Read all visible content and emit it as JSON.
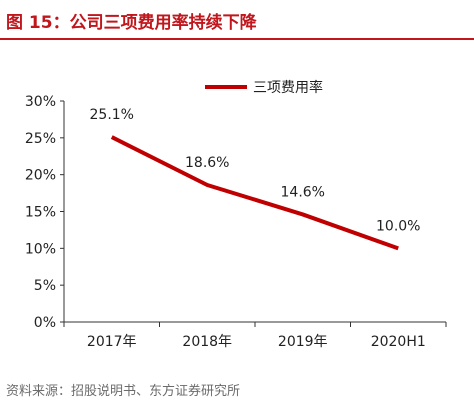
{
  "header": {
    "title": "图 15：公司三项费用率持续下降"
  },
  "footer": {
    "source": "资料来源：招股说明书、东方证券研究所"
  },
  "colors": {
    "accent": "#c0161c",
    "line": "#c00000"
  },
  "chart_data": {
    "type": "line",
    "title": "",
    "xlabel": "",
    "ylabel": "",
    "categories": [
      "2017年",
      "2018年",
      "2019年",
      "2020H1"
    ],
    "series": [
      {
        "name": "三项费用率",
        "values": [
          25.1,
          18.6,
          14.6,
          10.0
        ],
        "labels": [
          "25.1%",
          "18.6%",
          "14.6%",
          "10.0%"
        ]
      }
    ],
    "ylim": [
      0,
      30
    ],
    "yticks": [
      0,
      5,
      10,
      15,
      20,
      25,
      30
    ],
    "ytick_labels": [
      "0%",
      "5%",
      "10%",
      "15%",
      "20%",
      "25%",
      "30%"
    ],
    "grid": false,
    "legend_position": "top-center"
  }
}
